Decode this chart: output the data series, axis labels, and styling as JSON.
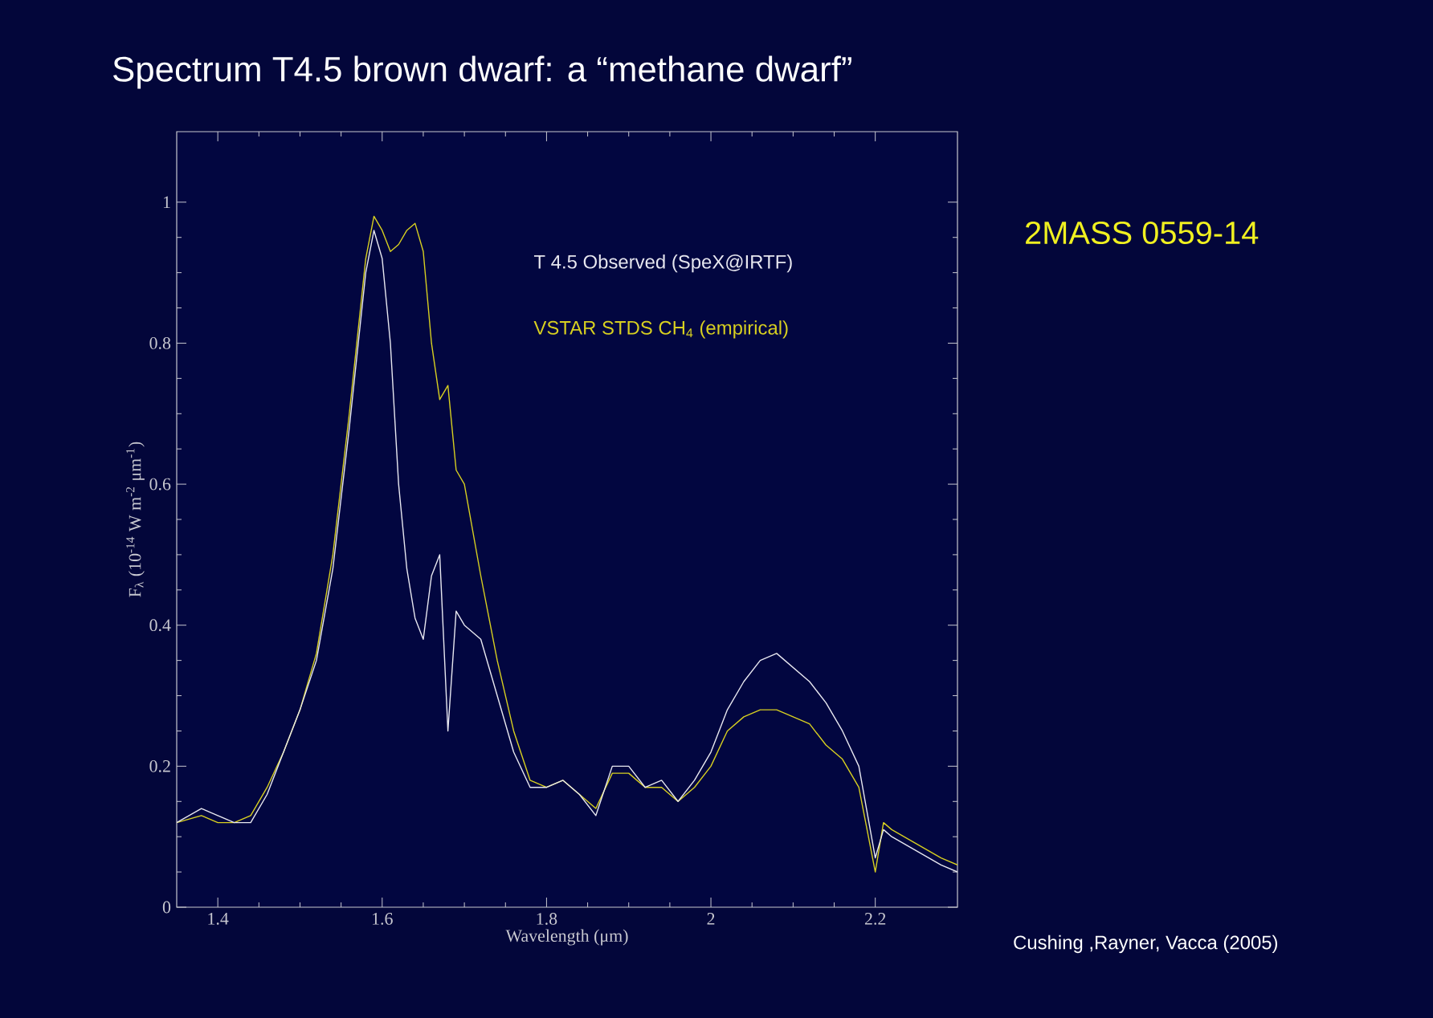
{
  "chart_data": {
    "type": "line",
    "title": "Spectrum T4.5 brown dwarf: a “methane dwarf”",
    "xlabel": "Wavelength (μm)",
    "ylabel": "F$_{λ}$ (10$^{-14}$ W m$^{-2}$ μm$^{-1}$)",
    "xlim": [
      1.35,
      2.3
    ],
    "ylim": [
      0,
      1.1
    ],
    "xticks": [
      1.4,
      1.6,
      1.8,
      2,
      2.2
    ],
    "yticks": [
      0,
      0.2,
      0.4,
      0.6,
      0.8,
      1
    ],
    "annotations": [
      "2MASS 0559-14",
      "Cushing ,Rayner, Vacca  (2005)"
    ],
    "x": [
      1.35,
      1.38,
      1.4,
      1.42,
      1.44,
      1.46,
      1.48,
      1.5,
      1.52,
      1.54,
      1.56,
      1.58,
      1.59,
      1.6,
      1.61,
      1.62,
      1.63,
      1.64,
      1.65,
      1.66,
      1.67,
      1.68,
      1.69,
      1.7,
      1.72,
      1.74,
      1.76,
      1.78,
      1.8,
      1.82,
      1.84,
      1.86,
      1.88,
      1.9,
      1.92,
      1.94,
      1.96,
      1.98,
      2,
      2.02,
      2.04,
      2.06,
      2.08,
      2.1,
      2.12,
      2.14,
      2.16,
      2.18,
      2.2,
      2.21,
      2.22,
      2.25,
      2.28,
      2.3
    ],
    "series": [
      {
        "name": "VSTAR STDS CH$_{4}$  (empirical)",
        "color": "#d8d020",
        "values": [
          0.12,
          0.13,
          0.12,
          0.12,
          0.13,
          0.17,
          0.22,
          0.28,
          0.36,
          0.5,
          0.7,
          0.92,
          0.98,
          0.96,
          0.93,
          0.94,
          0.96,
          0.97,
          0.93,
          0.8,
          0.72,
          0.74,
          0.62,
          0.6,
          0.47,
          0.35,
          0.25,
          0.18,
          0.17,
          0.18,
          0.16,
          0.14,
          0.19,
          0.19,
          0.17,
          0.17,
          0.15,
          0.17,
          0.2,
          0.25,
          0.27,
          0.28,
          0.28,
          0.27,
          0.26,
          0.23,
          0.21,
          0.17,
          0.05,
          0.12,
          0.11,
          0.09,
          0.07,
          0.06
        ]
      },
      {
        "name": "T 4.5 Observed (SpeX@IRTF)",
        "color": "#e8e8f0",
        "values": [
          0.12,
          0.14,
          0.13,
          0.12,
          0.12,
          0.16,
          0.22,
          0.28,
          0.35,
          0.48,
          0.68,
          0.9,
          0.96,
          0.92,
          0.8,
          0.6,
          0.48,
          0.41,
          0.38,
          0.47,
          0.5,
          0.25,
          0.42,
          0.4,
          0.38,
          0.3,
          0.22,
          0.17,
          0.17,
          0.18,
          0.16,
          0.13,
          0.2,
          0.2,
          0.17,
          0.18,
          0.15,
          0.18,
          0.22,
          0.28,
          0.32,
          0.35,
          0.36,
          0.34,
          0.32,
          0.29,
          0.25,
          0.2,
          0.07,
          0.11,
          0.1,
          0.08,
          0.06,
          0.05
        ]
      }
    ]
  }
}
